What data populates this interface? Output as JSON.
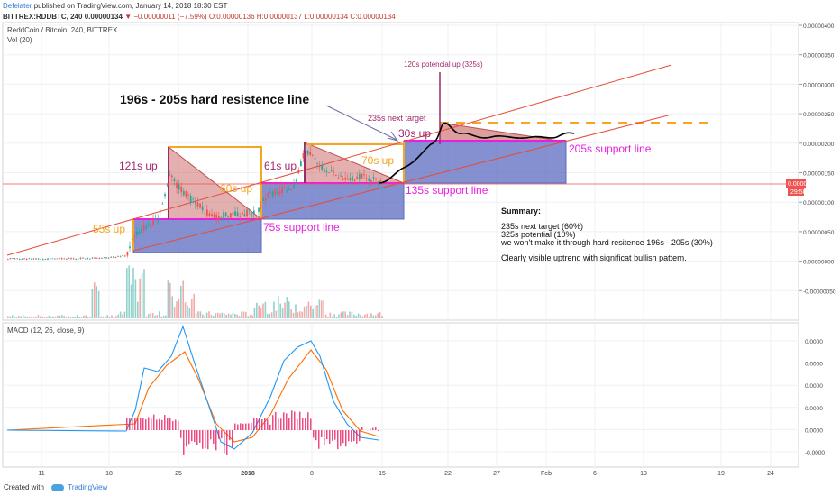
{
  "header": {
    "user": "Defelater",
    "published": "published on TradingView.com, January 14, 2018 18:30 EST",
    "symbol": "BITTREX:RDDBTC, 240",
    "price": "0.00000134",
    "change_arrow": "▼",
    "change": "−0.00000011 (−7.59%)",
    "ohlc": "O:0.00000136 H:0.00000137 L:0.00000134 C:0.00000134"
  },
  "main_pane": {
    "legend_title": "ReddCoin / Bitcoin, 240, BITTREX",
    "legend_vol": "Vol (20)",
    "price_tag": "0.00000134",
    "countdown": "29:58"
  },
  "macd_pane": {
    "legend": "MACD (12, 26, close, 9)"
  },
  "annotations": {
    "hard_resistance": "196s - 205s hard resistence line",
    "potential_up": "120s potencial up (325s)",
    "next_target": "235s next target",
    "up_30": "30s up",
    "up_121": "121s up",
    "up_61": "61s up",
    "up_70": "70s up",
    "up_60": "60s up",
    "up_55": "55s up",
    "support_205": "205s support line",
    "support_135": "135s support line",
    "support_75": "75s support line",
    "summary_title": "Summary:",
    "summary_1": "235s next target (60%)",
    "summary_2": "325s potential (10%)",
    "summary_3": "we won't make it through hard resitence 196s - 205s (30%)",
    "summary_4": "Clearly visible uptrend with significat bullish pattern."
  },
  "footer": {
    "created_with": "Created with",
    "brand": "TradingView"
  },
  "colors": {
    "up": "#26a69a",
    "down": "#ef5350",
    "trend": "#e74c3c",
    "orange": "#f5a623",
    "magenta": "#e91ee0",
    "support_box": "#5c6bc0",
    "macd_line": "#2196f3",
    "signal_line": "#ff6d00",
    "hist": "#e91e63"
  },
  "chart_data": [
    {
      "type": "candlestick",
      "title": "ReddCoin / Bitcoin, 240, BITTREX",
      "x_tick_labels": [
        "11",
        "18",
        "25",
        "2018",
        "8",
        "15",
        "22",
        "27",
        "Feb",
        "6",
        "13",
        "19",
        "24"
      ],
      "y_tick_labels": [
        "0.00000400",
        "0.00000350",
        "0.00000300",
        "0.00000250",
        "0.00000200",
        "0.00000150",
        "0.00000100",
        "0.00000050",
        "0.00000000",
        "-0.00000050"
      ],
      "ylim": [
        -5e-07,
        4e-06
      ],
      "last_price": 1.34e-06,
      "key_levels": [
        7.5e-07,
        1.35e-06,
        1.96e-06,
        2.05e-06,
        2.35e-06,
        3.25e-06
      ]
    },
    {
      "type": "line",
      "title": "MACD (12, 26, close, 9)",
      "y_tick_labels": [
        "0.0000",
        "0.0000",
        "0.0000",
        "0.0000",
        "0.0000",
        "-0.0000"
      ],
      "series": [
        {
          "name": "MACD"
        },
        {
          "name": "Signal"
        },
        {
          "name": "Histogram"
        }
      ]
    }
  ]
}
